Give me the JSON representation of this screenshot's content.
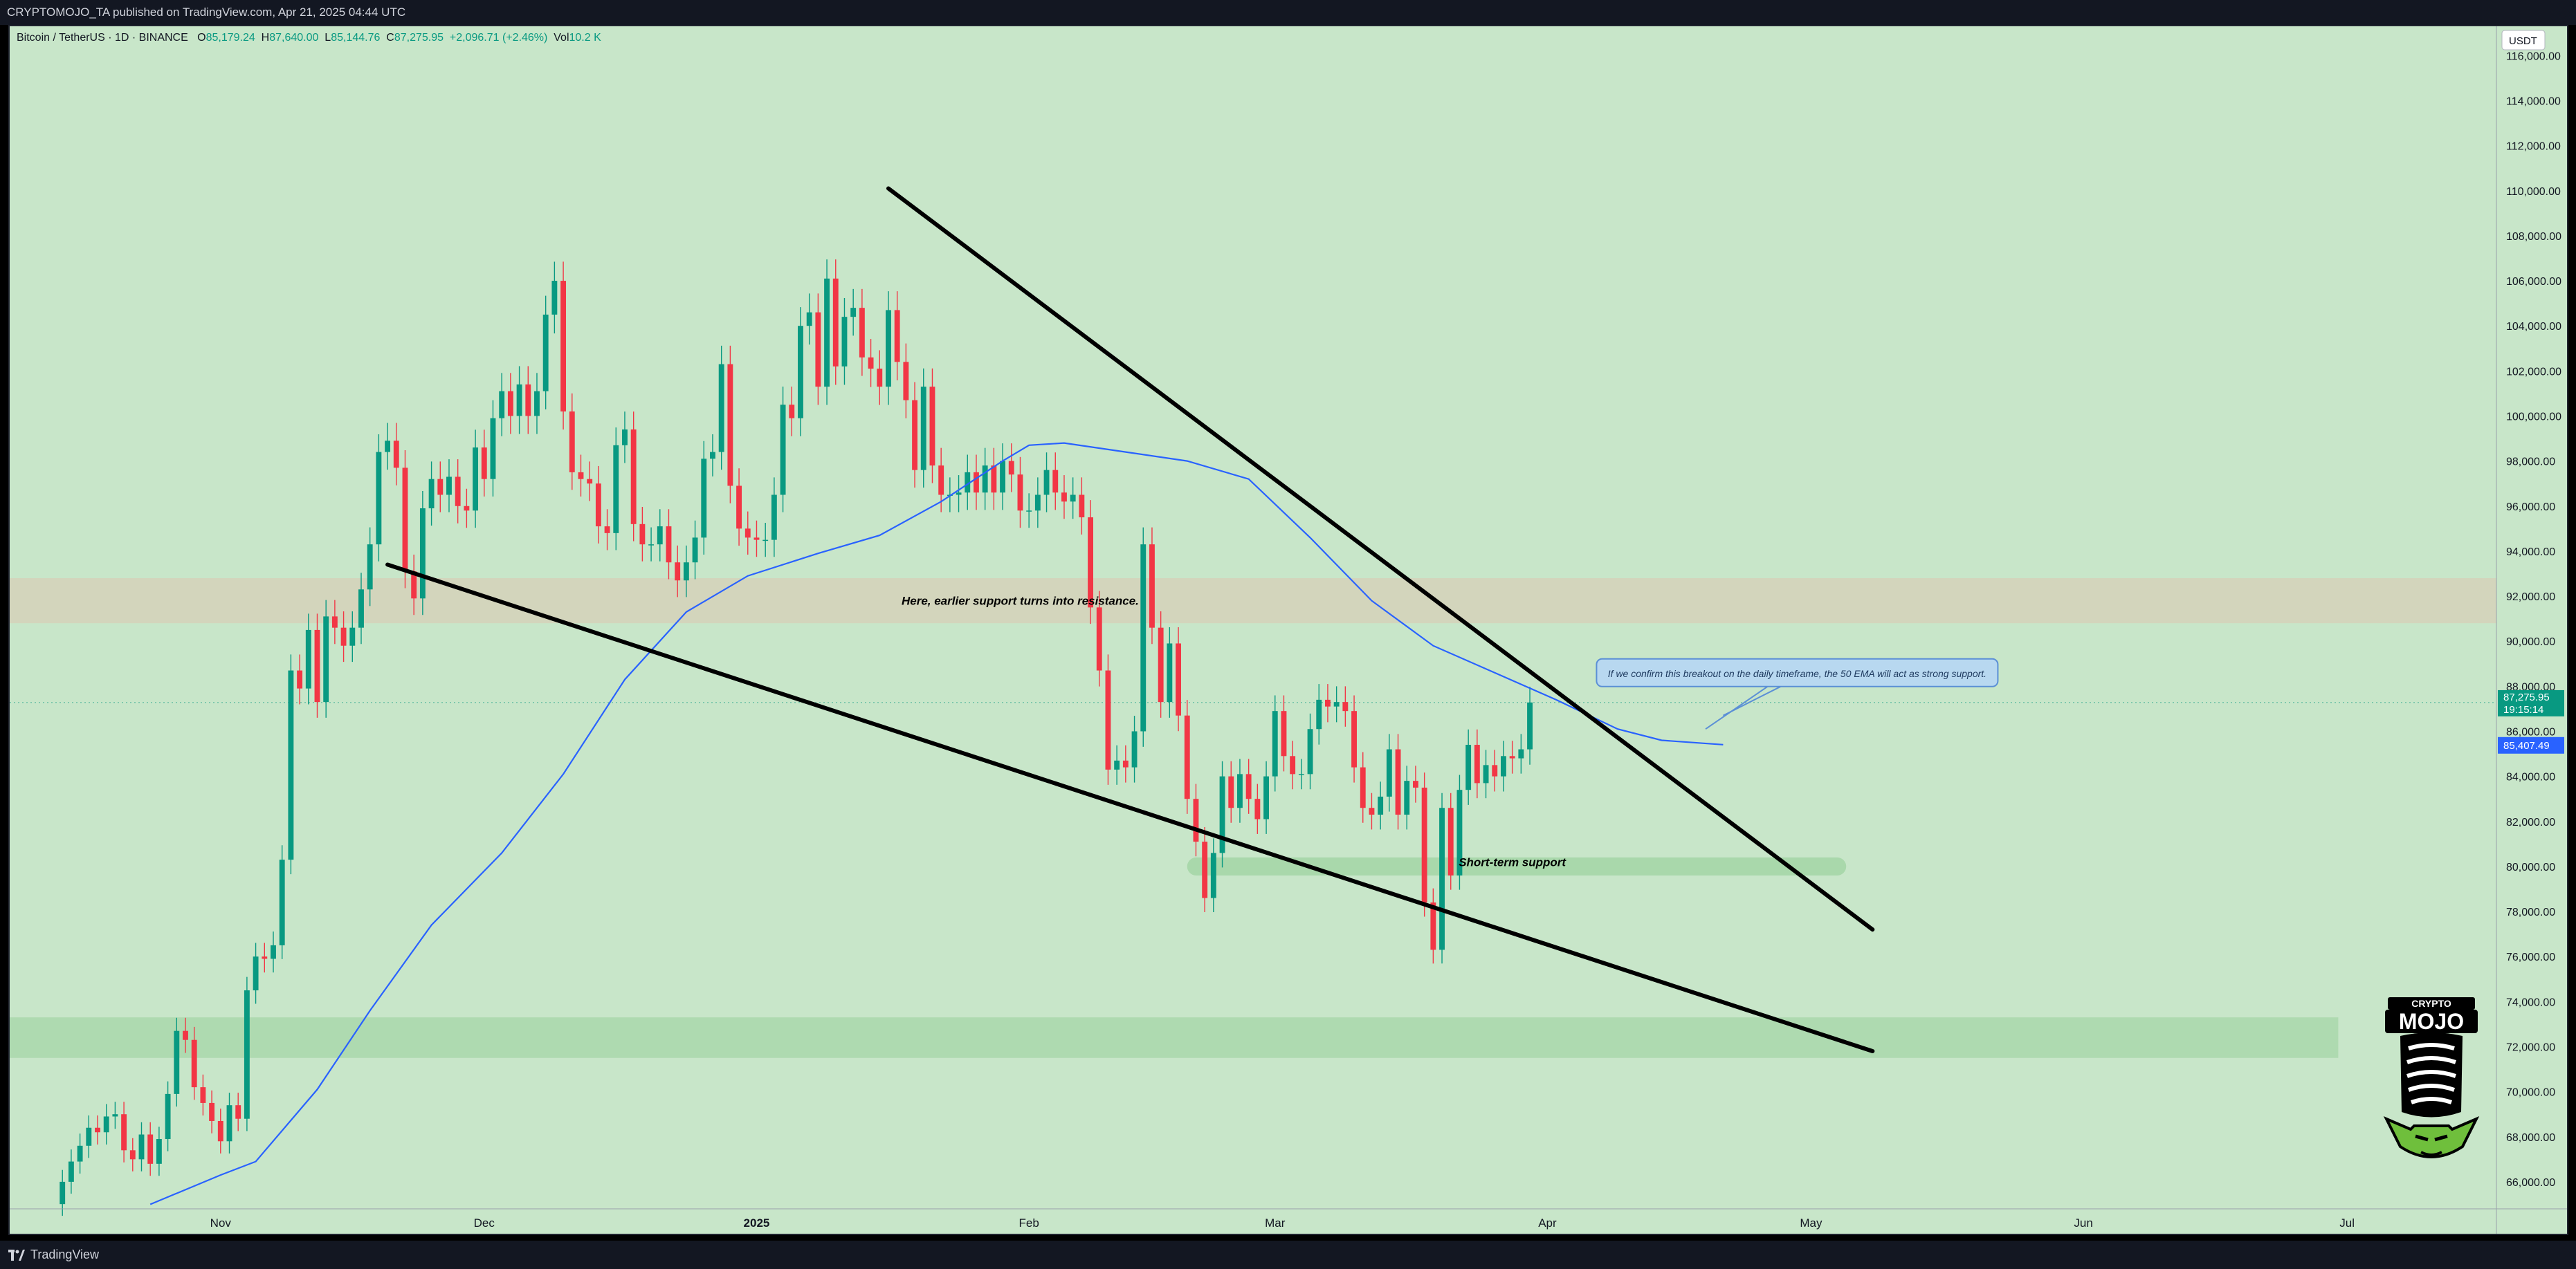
{
  "header": {
    "published": "CRYPTOMOJO_TA published on TradingView.com, Apr 21, 2025 04:44 UTC"
  },
  "legend": {
    "symbol": "Bitcoin / TetherUS · 1D · BINANCE",
    "o_label": "O",
    "o_value": "85,179.24",
    "h_label": "H",
    "h_value": "87,640.00",
    "l_label": "L",
    "l_value": "85,144.76",
    "c_label": "C",
    "c_value": "87,275.95",
    "change": "+2,096.71 (+2.46%)",
    "vol_label": "Vol",
    "vol_value": "10.2 K"
  },
  "footer": {
    "brand": "TradingView"
  },
  "logo": {
    "text_top": "CRYPTO",
    "text_main": "MOJO"
  },
  "colors": {
    "background": "#c8e6c9",
    "up": "#089981",
    "down": "#f23645",
    "ema": "#2962ff",
    "resistance_zone": "#d7cfb7",
    "support_zone": "#a5d6a7",
    "trendline": "#000000"
  },
  "chart_data": {
    "type": "candlestick",
    "title": "",
    "price_axis": {
      "currency": "USDT",
      "ylim": [
        64800,
        117300
      ],
      "ticks": [
        66000,
        68000,
        70000,
        72000,
        74000,
        76000,
        78000,
        80000,
        82000,
        84000,
        86000,
        88000,
        90000,
        92000,
        94000,
        96000,
        98000,
        100000,
        102000,
        104000,
        106000,
        108000,
        110000,
        112000,
        114000,
        116000
      ],
      "tick_labels": [
        "66,000.00",
        "68,000.00",
        "70,000.00",
        "72,000.00",
        "74,000.00",
        "76,000.00",
        "78,000.00",
        "80,000.00",
        "82,000.00",
        "84,000.00",
        "86,000.00",
        "88,000.00",
        "90,000.00",
        "92,000.00",
        "94,000.00",
        "96,000.00",
        "98,000.00",
        "100,000.00",
        "102,000.00",
        "104,000.00",
        "106,000.00",
        "108,000.00",
        "110,000.00",
        "112,000.00",
        "114,000.00",
        "116,000.00"
      ]
    },
    "time_axis": {
      "range": [
        "2024-10-08",
        "2025-07-18"
      ],
      "ticks": [
        {
          "date": "2024-11-01",
          "label": "Nov"
        },
        {
          "date": "2024-12-01",
          "label": "Dec"
        },
        {
          "date": "2025-01-01",
          "label": "2025"
        },
        {
          "date": "2025-02-01",
          "label": "Feb"
        },
        {
          "date": "2025-03-01",
          "label": "Mar"
        },
        {
          "date": "2025-04-01",
          "label": "Apr"
        },
        {
          "date": "2025-05-01",
          "label": "May"
        },
        {
          "date": "2025-06-01",
          "label": "Jun"
        },
        {
          "date": "2025-07-01",
          "label": "Jul"
        }
      ]
    },
    "price_labels": {
      "last_price": 87275.95,
      "last_price_text": "87,275.95",
      "countdown": "19:15:14",
      "ema_value": 85407.49,
      "ema_text": "85,407.49"
    },
    "series": [
      {
        "name": "BTC/USDT",
        "kind": "candles",
        "start_date": "2024-10-14",
        "close": [
          66000,
          66900,
          67600,
          68400,
          68200,
          68900,
          69000,
          67400,
          67000,
          68100,
          66800,
          67900,
          69900,
          72700,
          72300,
          70200,
          69500,
          68700,
          67800,
          69400,
          68800,
          74500,
          76000,
          75900,
          76500,
          80300,
          88700,
          87900,
          90500,
          87300,
          91100,
          90600,
          89800,
          90600,
          92300,
          94300,
          98400,
          98900,
          97700,
          93100,
          91900,
          95900,
          97200,
          96500,
          97300,
          96000,
          95800,
          98600,
          97200,
          99900,
          101100,
          100000,
          101400,
          100000,
          101100,
          104500,
          106000,
          100200,
          97500,
          97200,
          97000,
          95100,
          94800,
          98700,
          99400,
          95200,
          94300,
          94300,
          95100,
          93500,
          92700,
          93500,
          94600,
          98100,
          98400,
          102300,
          96900,
          95000,
          94600,
          94500,
          94500,
          96500,
          100500,
          99900,
          104000,
          104600,
          101300,
          106100,
          102200,
          104400,
          104800,
          102600,
          102100,
          101300,
          104700,
          102400,
          100700,
          97600,
          101300,
          97800,
          96500,
          96500,
          96600,
          97500,
          96600,
          97800,
          96600,
          98000,
          97400,
          95800,
          95800,
          96500,
          97600,
          96600,
          96200,
          96500,
          95500,
          91500,
          88700,
          84300,
          84700,
          84400,
          86000,
          94300,
          90600,
          87300,
          89900,
          86700,
          83000,
          81100,
          78600,
          80600,
          84000,
          82600,
          84100,
          83000,
          82100,
          84000,
          86900,
          84900,
          84100,
          84100,
          86100,
          87400,
          87100,
          87300,
          86900,
          84400,
          82600,
          82300,
          83100,
          85200,
          82300,
          83800,
          83500,
          78400,
          76300,
          82600,
          79600,
          83400,
          85400,
          83700,
          84500,
          84000,
          84900,
          84800,
          85200,
          87280
        ]
      },
      {
        "name": "50 EMA",
        "kind": "line",
        "values": [
          [
            "2024-10-24",
            65000
          ],
          [
            "2024-11-01",
            66300
          ],
          [
            "2024-11-05",
            66900
          ],
          [
            "2024-11-12",
            70100
          ],
          [
            "2024-11-18",
            73600
          ],
          [
            "2024-11-25",
            77400
          ],
          [
            "2024-12-03",
            80600
          ],
          [
            "2024-12-10",
            84100
          ],
          [
            "2024-12-17",
            88300
          ],
          [
            "2024-12-24",
            91300
          ],
          [
            "2024-12-31",
            92900
          ],
          [
            "2025-01-08",
            93900
          ],
          [
            "2025-01-15",
            94700
          ],
          [
            "2025-01-22",
            96200
          ],
          [
            "2025-01-29",
            98000
          ],
          [
            "2025-02-01",
            98700
          ],
          [
            "2025-02-05",
            98800
          ],
          [
            "2025-02-12",
            98400
          ],
          [
            "2025-02-19",
            98000
          ],
          [
            "2025-02-26",
            97200
          ],
          [
            "2025-03-05",
            94600
          ],
          [
            "2025-03-12",
            91800
          ],
          [
            "2025-03-19",
            89800
          ],
          [
            "2025-03-26",
            88600
          ],
          [
            "2025-04-02",
            87400
          ],
          [
            "2025-04-09",
            86100
          ],
          [
            "2025-04-14",
            85600
          ],
          [
            "2025-04-21",
            85407
          ]
        ]
      }
    ],
    "trendlines": [
      {
        "name": "upper-trendline",
        "from": [
          "2025-01-16",
          110100
        ],
        "to": [
          "2025-05-08",
          77200
        ]
      },
      {
        "name": "lower-trendline",
        "from": [
          "2024-11-20",
          93400
        ],
        "to": [
          "2025-05-08",
          71800
        ]
      }
    ],
    "zones": [
      {
        "name": "resistance-zone",
        "from_date": "2024-10-08",
        "to_date": "2025-07-18",
        "low": 90800,
        "high": 92800
      },
      {
        "name": "support-zone-lower",
        "from_date": "2024-10-08",
        "to_date": "2025-06-30",
        "low": 71500,
        "high": 73300
      },
      {
        "name": "support-zone-short",
        "from_date": "2025-02-19",
        "to_date": "2025-05-05",
        "low": 79600,
        "high": 80400
      }
    ],
    "annotations": [
      {
        "name": "resistance-note",
        "text": "Here, earlier support turns into resistance.",
        "date": "2025-01-31",
        "price": 91800
      },
      {
        "name": "short-term-support-note",
        "text": "Short-term support",
        "date": "2025-03-28",
        "price": 80200
      },
      {
        "name": "breakout-note",
        "text": "If we confirm this breakout on the daily timeframe, the 50 EMA will act as strong support.",
        "date": "2025-05-01",
        "price": 88600
      }
    ]
  }
}
